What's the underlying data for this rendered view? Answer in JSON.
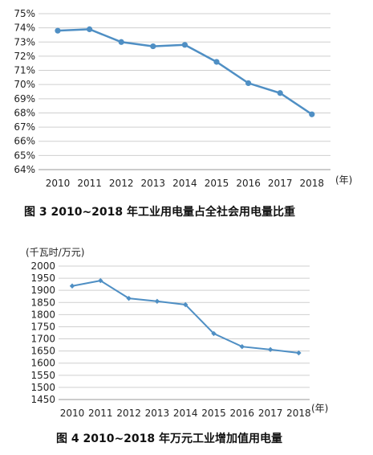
{
  "chart_data": [
    {
      "type": "line",
      "title": "图 3  2010~2018 年工业用电量占全社会用电量比重",
      "x_unit": "(年)",
      "categories": [
        "2010",
        "2011",
        "2012",
        "2013",
        "2014",
        "2015",
        "2016",
        "2017",
        "2018"
      ],
      "series": [
        {
          "values": [
            73.8,
            73.9,
            73.0,
            72.7,
            72.8,
            71.6,
            70.1,
            69.4,
            67.9
          ],
          "color": "#4f8fc4"
        }
      ],
      "ylim": [
        64,
        75
      ],
      "yticks": [
        "64%",
        "65%",
        "66%",
        "67%",
        "68%",
        "69%",
        "70%",
        "71%",
        "72%",
        "73%",
        "74%",
        "75%"
      ],
      "grid": true,
      "marker": "circle"
    },
    {
      "type": "line",
      "title": "图 4   2010~2018 年万元工业增加值用电量",
      "y_unit": "(千瓦时/万元)",
      "x_unit": "(年)",
      "categories": [
        "2010",
        "2011",
        "2012",
        "2013",
        "2014",
        "2015",
        "2016",
        "2017",
        "2018"
      ],
      "series": [
        {
          "values": [
            1918,
            1940,
            1867,
            1855,
            1841,
            1722,
            1668,
            1656,
            1642
          ],
          "color": "#4f8fc4"
        }
      ],
      "ylim": [
        1450,
        2000
      ],
      "yticks": [
        "1450",
        "1500",
        "1550",
        "1600",
        "1650",
        "1700",
        "1750",
        "1800",
        "1850",
        "1900",
        "1950",
        "2000"
      ],
      "grid": true,
      "marker": "diamond"
    }
  ]
}
